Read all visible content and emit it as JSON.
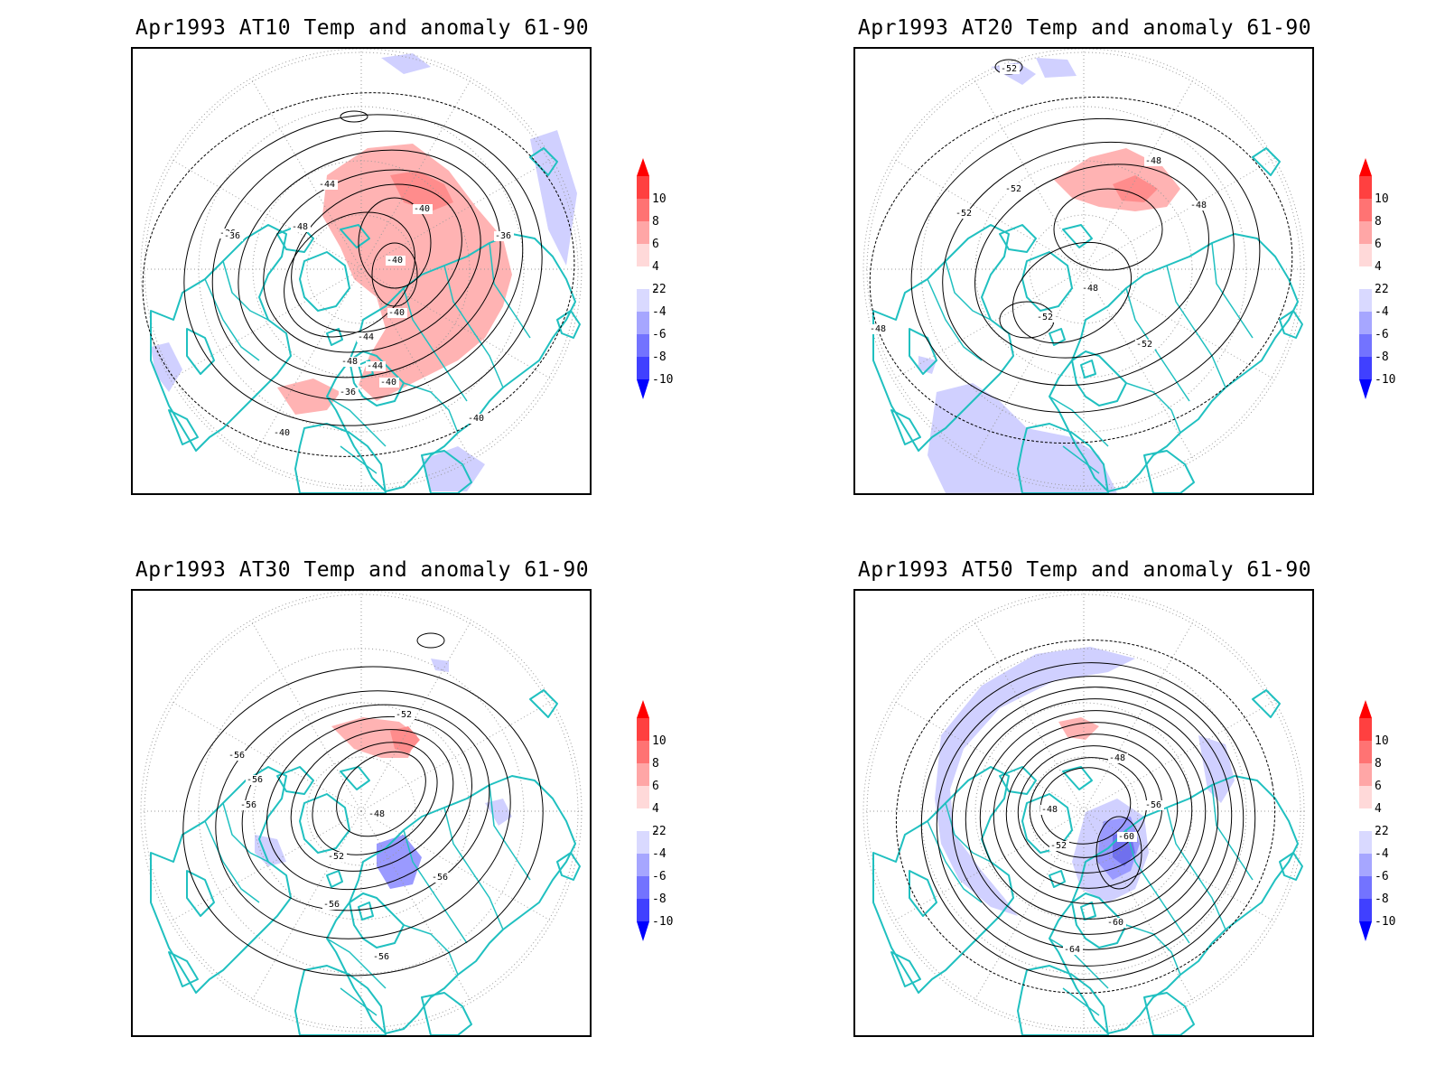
{
  "panels": [
    {
      "id": "at10",
      "title": "Apr1993 AT10 Temp and anomaly 61-90",
      "contour_labels": [
        "-36",
        "-40",
        "-44",
        "-48",
        "-40",
        "-36",
        "-40",
        "-44",
        "-48",
        "-44",
        "-40",
        "-36",
        "-40",
        "-40",
        "-48",
        "-36"
      ],
      "anomaly_regions": [
        {
          "sign": "positive",
          "level": 4
        },
        {
          "sign": "positive",
          "level": 6
        },
        {
          "sign": "positive",
          "level": 2
        },
        {
          "sign": "negative",
          "level": -2
        }
      ]
    },
    {
      "id": "at20",
      "title": "Apr1993 AT20 Temp and anomaly 61-90",
      "contour_labels": [
        "-52",
        "-48",
        "-52",
        "-48",
        "-48",
        "-52",
        "-48",
        "-52",
        "-52"
      ],
      "anomaly_regions": [
        {
          "sign": "positive",
          "level": 4
        },
        {
          "sign": "positive",
          "level": 6
        },
        {
          "sign": "negative",
          "level": -2
        }
      ]
    },
    {
      "id": "at30",
      "title": "Apr1993 AT30 Temp and anomaly 61-90",
      "contour_labels": [
        "-52",
        "-56",
        "-56",
        "-56",
        "-48",
        "-52",
        "-56",
        "-56",
        "-56"
      ],
      "anomaly_regions": [
        {
          "sign": "positive",
          "level": 4
        },
        {
          "sign": "negative",
          "level": -2
        },
        {
          "sign": "negative",
          "level": -4
        }
      ]
    },
    {
      "id": "at50",
      "title": "Apr1993 AT50 Temp and anomaly 61-90",
      "contour_labels": [
        "-48",
        "-48",
        "-52",
        "-56",
        "-60",
        "-60",
        "-64"
      ],
      "anomaly_regions": [
        {
          "sign": "negative",
          "level": -2
        },
        {
          "sign": "negative",
          "level": -4
        },
        {
          "sign": "negative",
          "level": -6
        },
        {
          "sign": "positive",
          "level": 2
        }
      ]
    }
  ],
  "colorbar": {
    "labels": [
      "10",
      "8",
      "6",
      "4",
      "2",
      "-2",
      "-4",
      "-6",
      "-8",
      "-10"
    ],
    "colors": [
      "#ff0000",
      "#ff4040",
      "#ff7373",
      "#ffa6a6",
      "#ffd9d9",
      "#ffffff",
      "#d9d9ff",
      "#a6a6ff",
      "#7373ff",
      "#4040ff",
      "#0000ff"
    ]
  },
  "colors": {
    "coastline": "#20c0c0",
    "contour": "#000000",
    "grid": "#999999",
    "positive_anomaly": "#ffb3b3",
    "positive_anomaly_strong": "#ff8c8c",
    "negative_anomaly": "#d0d0ff",
    "negative_anomaly_strong": "#9a9aff",
    "negative_anomaly_deep": "#7070ee"
  }
}
